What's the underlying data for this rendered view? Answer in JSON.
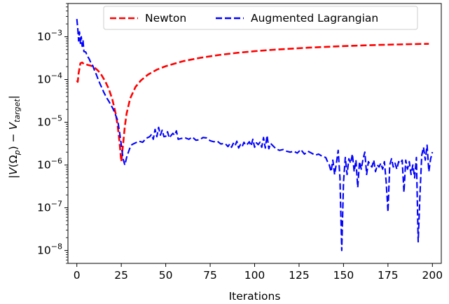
{
  "chart_data": {
    "type": "line",
    "xlabel": "Iterations",
    "ylabel": "|V(Ω_p) − V_target|",
    "ylabel_parts": {
      "open": "|",
      "V": "V",
      "omega": "(Ω",
      "sub_p": "p",
      "close": ") − ",
      "V2": "V",
      "sub_target": "target",
      "end": "|"
    },
    "xlim": [
      -5,
      205
    ],
    "ylim": [
      5e-09,
      0.006
    ],
    "yscale": "log",
    "xticks": [
      0,
      25,
      50,
      75,
      100,
      125,
      150,
      175,
      200
    ],
    "yticks": [
      {
        "value": 1e-08,
        "base": "10",
        "exp": "−8"
      },
      {
        "value": 1e-07,
        "base": "10",
        "exp": "−7"
      },
      {
        "value": 1e-06,
        "base": "10",
        "exp": "−6"
      },
      {
        "value": 1e-05,
        "base": "10",
        "exp": "−5"
      },
      {
        "value": 0.0001,
        "base": "10",
        "exp": "−4"
      },
      {
        "value": 0.001,
        "base": "10",
        "exp": "−3"
      }
    ],
    "legend": {
      "position": "top-center",
      "entries": [
        "Newton",
        "Augmented Lagrangian"
      ]
    },
    "grid": false,
    "series": [
      {
        "name": "Newton",
        "color": "#ff0000",
        "dash": "dashed",
        "points": [
          [
            0,
            9.5e-05
          ],
          [
            0.5,
            8.8e-05
          ],
          [
            1,
            0.00014
          ],
          [
            2,
            0.00024
          ],
          [
            3,
            0.00025
          ],
          [
            4,
            0.00023
          ],
          [
            5,
            0.00023
          ],
          [
            6,
            0.00022
          ],
          [
            8,
            0.00021
          ],
          [
            10,
            0.00019
          ],
          [
            12,
            0.00016
          ],
          [
            14,
            0.000125
          ],
          [
            16,
            9e-05
          ],
          [
            18,
            6e-05
          ],
          [
            20,
            3.4e-05
          ],
          [
            22,
            1.5e-05
          ],
          [
            23,
            8e-06
          ],
          [
            24,
            3.5e-06
          ],
          [
            25,
            1.2e-06
          ],
          [
            26,
            3e-06
          ],
          [
            27,
            8e-06
          ],
          [
            28,
            1.6e-05
          ],
          [
            30,
            3.6e-05
          ],
          [
            33,
            6.7e-05
          ],
          [
            36,
            9.5e-05
          ],
          [
            40,
            0.00013
          ],
          [
            45,
            0.00017
          ],
          [
            50,
            0.000205
          ],
          [
            60,
            0.00027
          ],
          [
            70,
            0.000325
          ],
          [
            80,
            0.000375
          ],
          [
            90,
            0.00042
          ],
          [
            100,
            0.00046
          ],
          [
            110,
            0.000495
          ],
          [
            120,
            0.000525
          ],
          [
            130,
            0.000555
          ],
          [
            140,
            0.00058
          ],
          [
            150,
            0.000605
          ],
          [
            160,
            0.000625
          ],
          [
            170,
            0.000645
          ],
          [
            180,
            0.00066
          ],
          [
            190,
            0.000675
          ],
          [
            198,
            0.000685
          ]
        ]
      },
      {
        "name": "Augmented Lagrangian",
        "color": "#0000ff",
        "dash": "dashed",
        "points": [
          [
            0,
            0.0026
          ],
          [
            0.5,
            0.0016
          ],
          [
            1,
            0.0008
          ],
          [
            1.5,
            0.0013
          ],
          [
            2,
            0.0007
          ],
          [
            2.5,
            0.001
          ],
          [
            3,
            0.0006
          ],
          [
            3.5,
            0.0008
          ],
          [
            4,
            0.00045
          ],
          [
            5,
            0.00044
          ],
          [
            6,
            0.00035
          ],
          [
            7,
            0.0003
          ],
          [
            8,
            0.00024
          ],
          [
            9,
            0.00021
          ],
          [
            10,
            0.00016
          ],
          [
            11,
            0.00013
          ],
          [
            12,
            0.0001
          ],
          [
            13,
            8e-05
          ],
          [
            14,
            6.5e-05
          ],
          [
            15,
            5.2e-05
          ],
          [
            16,
            4.3e-05
          ],
          [
            17,
            3.6e-05
          ],
          [
            18,
            3.1e-05
          ],
          [
            19,
            2.6e-05
          ],
          [
            20,
            2.2e-05
          ],
          [
            21,
            1.8e-05
          ],
          [
            22,
            1.4e-05
          ],
          [
            23,
            1.1e-05
          ],
          [
            24,
            6e-06
          ],
          [
            25,
            3e-06
          ],
          [
            26,
            1.4e-06
          ],
          [
            27,
            1e-06
          ],
          [
            28,
            1.5e-06
          ],
          [
            29,
            2e-06
          ],
          [
            30,
            2.6e-06
          ],
          [
            31,
            3e-06
          ],
          [
            33,
            3.3e-06
          ],
          [
            35,
            3.6e-06
          ],
          [
            37,
            3.4e-06
          ],
          [
            39,
            4.2e-06
          ],
          [
            41,
            4.6e-06
          ],
          [
            42,
            5.2e-06
          ],
          [
            43,
            4e-06
          ],
          [
            44,
            6.8e-06
          ],
          [
            45,
            4.6e-06
          ],
          [
            46,
            7.6e-06
          ],
          [
            47,
            5e-06
          ],
          [
            48,
            6.5e-06
          ],
          [
            49,
            4.6e-06
          ],
          [
            50,
            4.7e-06
          ],
          [
            51,
            6e-06
          ],
          [
            52,
            4.3e-06
          ],
          [
            53,
            4.9e-06
          ],
          [
            54,
            5.5e-06
          ],
          [
            55,
            5e-06
          ],
          [
            56,
            6.3e-06
          ],
          [
            57,
            4e-06
          ],
          [
            59,
            4.2e-06
          ],
          [
            61,
            4.3e-06
          ],
          [
            63,
            4e-06
          ],
          [
            65,
            4.5e-06
          ],
          [
            67,
            3.8e-06
          ],
          [
            69,
            3.9e-06
          ],
          [
            71,
            4.4e-06
          ],
          [
            73,
            4.3e-06
          ],
          [
            75,
            3.7e-06
          ],
          [
            77,
            3.5e-06
          ],
          [
            79,
            3.6e-06
          ],
          [
            81,
            3.1e-06
          ],
          [
            83,
            3.2e-06
          ],
          [
            84,
            3e-06
          ],
          [
            85,
            2.7e-06
          ],
          [
            86,
            3.1e-06
          ],
          [
            87,
            2.6e-06
          ],
          [
            88,
            3.2e-06
          ],
          [
            89,
            2.8e-06
          ],
          [
            90,
            3.6e-06
          ],
          [
            91,
            2.5e-06
          ],
          [
            92,
            3e-06
          ],
          [
            93,
            2.7e-06
          ],
          [
            94,
            3.4e-06
          ],
          [
            95,
            2.9e-06
          ],
          [
            96,
            3.1e-06
          ],
          [
            97,
            3.5e-06
          ],
          [
            98,
            2.8e-06
          ],
          [
            99,
            4e-06
          ],
          [
            100,
            2.6e-06
          ],
          [
            101,
            3.3e-06
          ],
          [
            102,
            3e-06
          ],
          [
            103,
            3.4e-06
          ],
          [
            104,
            2.6e-06
          ],
          [
            105,
            4.4e-06
          ],
          [
            106,
            2.5e-06
          ],
          [
            107,
            4.9e-06
          ],
          [
            108,
            2.4e-06
          ],
          [
            109,
            3.2e-06
          ],
          [
            110,
            2.9e-06
          ],
          [
            112,
            2.4e-06
          ],
          [
            114,
            2.2e-06
          ],
          [
            116,
            2.3e-06
          ],
          [
            118,
            2.1e-06
          ],
          [
            120,
            2e-06
          ],
          [
            122,
            2.1e-06
          ],
          [
            124,
            1.9e-06
          ],
          [
            126,
            2.3e-06
          ],
          [
            128,
            1.8e-06
          ],
          [
            130,
            2.1e-06
          ],
          [
            132,
            1.9e-06
          ],
          [
            134,
            1.7e-06
          ],
          [
            136,
            1.8e-06
          ],
          [
            138,
            1.6e-06
          ],
          [
            140,
            1.5e-06
          ],
          [
            141,
            1.2e-06
          ],
          [
            142,
            1e-06
          ],
          [
            143,
            7e-07
          ],
          [
            144,
            1.3e-06
          ],
          [
            145,
            6e-07
          ],
          [
            146,
            1.1e-06
          ],
          [
            147,
            2.2e-06
          ],
          [
            148,
            5e-07
          ],
          [
            149,
            1e-08
          ],
          [
            150,
            4e-07
          ],
          [
            151,
            1.5e-06
          ],
          [
            152,
            6e-07
          ],
          [
            153,
            1.4e-06
          ],
          [
            154,
            1.1e-06
          ],
          [
            155,
            1.8e-06
          ],
          [
            156,
            7e-07
          ],
          [
            157,
            1.3e-06
          ],
          [
            158,
            3e-07
          ],
          [
            159,
            1.2e-06
          ],
          [
            160,
            8e-07
          ],
          [
            161,
            1.4e-06
          ],
          [
            162,
            2e-06
          ],
          [
            163,
            6e-07
          ],
          [
            164,
            1.2e-06
          ],
          [
            165,
            1e-06
          ],
          [
            166,
            9e-07
          ],
          [
            167,
            1.3e-06
          ],
          [
            168,
            7e-07
          ],
          [
            169,
            1e-06
          ],
          [
            170,
            9e-07
          ],
          [
            171,
            1.1e-06
          ],
          [
            172,
            8e-07
          ],
          [
            173,
            1.2e-06
          ],
          [
            174,
            4e-07
          ],
          [
            175,
            8e-08
          ],
          [
            176,
            1e-06
          ],
          [
            177,
            1.4e-06
          ],
          [
            178,
            9e-07
          ],
          [
            179,
            1.1e-06
          ],
          [
            180,
            8e-07
          ],
          [
            181,
            1.2e-06
          ],
          [
            182,
            1.1e-06
          ],
          [
            183,
            1.3e-06
          ],
          [
            184,
            2.3e-07
          ],
          [
            185,
            1.3e-06
          ],
          [
            186,
            8e-07
          ],
          [
            187,
            1.2e-06
          ],
          [
            188,
            6e-07
          ],
          [
            189,
            1e-06
          ],
          [
            190,
            5e-07
          ],
          [
            191,
            1.5e-06
          ],
          [
            192,
            1.6e-08
          ],
          [
            193,
            2e-07
          ],
          [
            194,
            1.7e-06
          ],
          [
            195,
            2.6e-06
          ],
          [
            196,
            1.3e-06
          ],
          [
            197,
            2.9e-06
          ],
          [
            198,
            7e-07
          ],
          [
            199,
            1.4e-06
          ],
          [
            200,
            2e-06
          ]
        ]
      }
    ]
  }
}
